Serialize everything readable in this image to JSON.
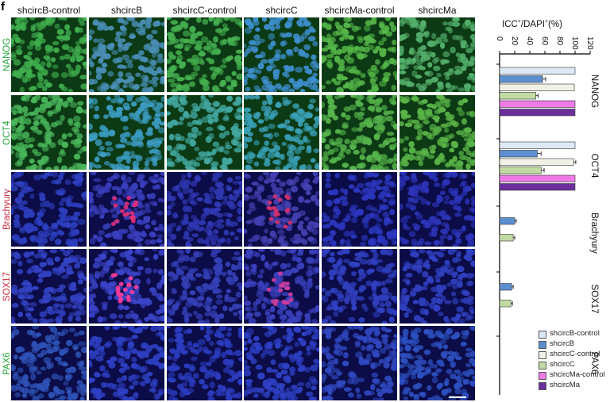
{
  "panel_letter": "f",
  "columns": [
    "shcircB-control",
    "shcircB",
    "shcircC-control",
    "shcircC",
    "shcircMa-control",
    "shcircMa"
  ],
  "rows": [
    {
      "label": "NANOG",
      "color": "#22a43a"
    },
    {
      "label": "OCT4",
      "color": "#22a43a"
    },
    {
      "label": "Brachyury",
      "color": "#c8283c"
    },
    {
      "label": "SOX17",
      "color": "#c8283c"
    },
    {
      "label": "PAX6",
      "color": "#22a43a"
    }
  ],
  "chart_data": {
    "type": "bar",
    "orientation": "horizontal",
    "title_main": "ICC",
    "title_mid": "/DAPI",
    "title_end": "(%)",
    "title_sup": "+",
    "categories": [
      "NANOG",
      "OCT4",
      "Brachyury",
      "SOX17",
      "PAX6"
    ],
    "ticks": [
      0,
      20,
      40,
      60,
      80,
      100,
      120
    ],
    "xlim": [
      0,
      120
    ],
    "series": [
      {
        "name": "shcircB-control",
        "color": "#dde9f6",
        "values": [
          100,
          100,
          null,
          null,
          null
        ]
      },
      {
        "name": "shcircB",
        "color": "#5c8fd0",
        "values": [
          57,
          50,
          20,
          16,
          null
        ]
      },
      {
        "name": "shcircC-control",
        "color": "#f1f1e6",
        "values": [
          99,
          98,
          null,
          null,
          null
        ]
      },
      {
        "name": "shcircC",
        "color": "#c2dba3",
        "values": [
          48,
          55,
          18,
          15,
          null
        ]
      },
      {
        "name": "shcircMa-control",
        "color": "#ee7ae6",
        "values": [
          100,
          100,
          null,
          null,
          null
        ]
      },
      {
        "name": "shcircMa",
        "color": "#6a2f9c",
        "values": [
          100,
          100,
          null,
          null,
          null
        ]
      }
    ],
    "errors": [
      [
        0,
        0,
        null,
        null,
        null
      ],
      [
        4,
        5,
        2,
        2,
        null
      ],
      [
        0,
        3,
        null,
        null,
        null
      ],
      [
        3,
        4,
        2,
        2,
        null
      ],
      [
        0,
        0,
        null,
        null,
        null
      ],
      [
        0,
        0,
        null,
        null,
        null
      ]
    ]
  }
}
